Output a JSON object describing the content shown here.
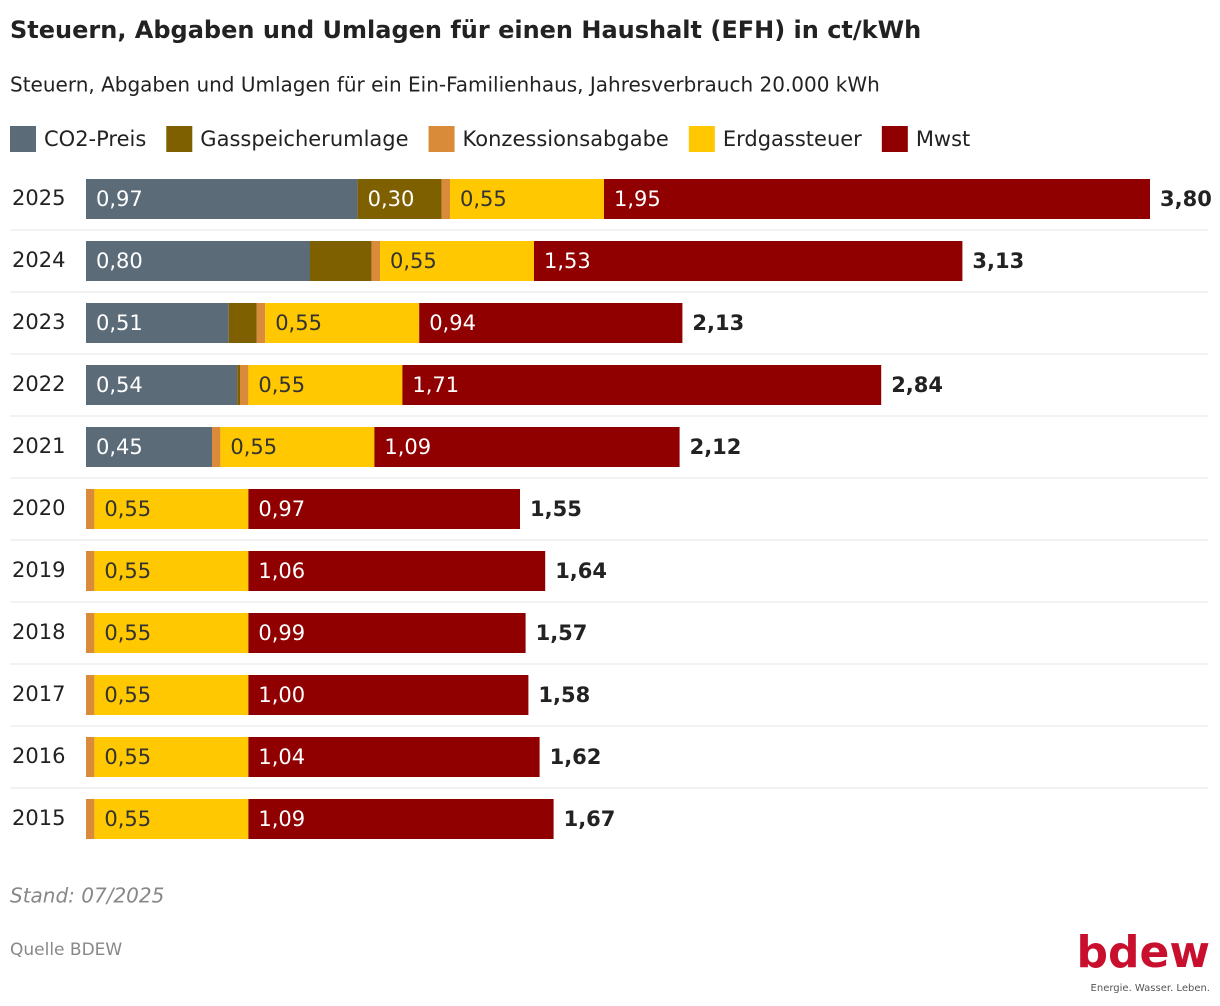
{
  "chart_data": {
    "type": "stacked-bar-horizontal",
    "title": "Steuern, Abgaben und Umlagen für einen Haushalt (EFH) in ct/kWh",
    "subtitle": "Steuern, Abgaben und Umlagen für ein Ein-Familienhaus, Jahresverbrauch 20.000 kWh",
    "categories": [
      "2025",
      "2024",
      "2023",
      "2022",
      "2021",
      "2020",
      "2019",
      "2018",
      "2017",
      "2016",
      "2015"
    ],
    "series": [
      {
        "name": "CO2-Preis",
        "color": "#5b6b78",
        "values": [
          0.97,
          0.8,
          0.51,
          0.54,
          0.45,
          null,
          null,
          null,
          null,
          null,
          null
        ],
        "value_labels": [
          "0,97",
          "0,80",
          "0,51",
          "0,54",
          "0,45",
          null,
          null,
          null,
          null,
          null,
          null
        ]
      },
      {
        "name": "Gasspeicherumlage",
        "color": "#7f6000",
        "values": [
          0.3,
          0.22,
          0.1,
          0.01,
          null,
          null,
          null,
          null,
          null,
          null,
          null
        ],
        "value_labels": [
          "0,30",
          null,
          null,
          null,
          null,
          null,
          null,
          null,
          null,
          null,
          null
        ]
      },
      {
        "name": "Konzessionsabgabe",
        "color": "#d98b3a",
        "values": [
          0.03,
          0.03,
          0.03,
          0.03,
          0.03,
          0.03,
          0.03,
          0.03,
          0.03,
          0.03,
          0.03
        ]
      },
      {
        "name": "Erdgassteuer",
        "color": "#ffc800",
        "values": [
          0.55,
          0.55,
          0.55,
          0.55,
          0.55,
          0.55,
          0.55,
          0.55,
          0.55,
          0.55,
          0.55
        ],
        "value_labels": [
          "0,55",
          "0,55",
          "0,55",
          "0,55",
          "0,55",
          "0,55",
          "0,55",
          "0,55",
          "0,55",
          "0,55",
          "0,55"
        ]
      },
      {
        "name": "Mwst",
        "color": "#900000",
        "values": [
          1.95,
          1.53,
          0.94,
          1.71,
          1.09,
          0.97,
          1.06,
          0.99,
          1.0,
          1.04,
          1.09
        ],
        "value_labels": [
          "1,95",
          "1,53",
          "0,94",
          "1,71",
          "1,09",
          "0,97",
          "1,06",
          "0,99",
          "1,00",
          "1,04",
          "1,09"
        ]
      }
    ],
    "totals": [
      3.8,
      3.13,
      2.13,
      2.84,
      2.12,
      1.55,
      1.64,
      1.57,
      1.58,
      1.62,
      1.67
    ],
    "total_labels": [
      "3,80",
      "3,13",
      "2,13",
      "2,84",
      "2,12",
      "1,55",
      "1,64",
      "1,57",
      "1,58",
      "1,62",
      "1,67"
    ],
    "note": "Stand: 07/2025",
    "source": "Quelle BDEW",
    "logo": {
      "name": "bdew",
      "tagline": "Energie. Wasser. Leben."
    }
  }
}
